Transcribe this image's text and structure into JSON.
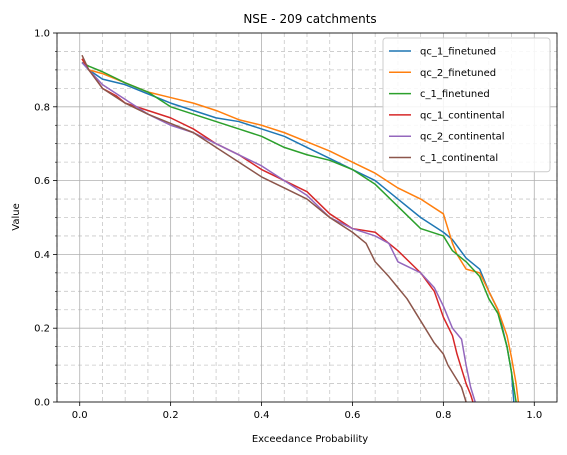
{
  "chart_data": {
    "type": "line",
    "title": "NSE - 209 catchments",
    "xlabel": "Exceedance Probability",
    "ylabel": "Value",
    "xlim": [
      -0.05,
      1.05
    ],
    "ylim": [
      0.0,
      1.0
    ],
    "xticks": [
      0.0,
      0.2,
      0.4,
      0.6,
      0.8,
      1.0
    ],
    "xtick_labels": [
      "0.0",
      "0.2",
      "0.4",
      "0.6",
      "0.8",
      "1.0"
    ],
    "yticks": [
      0.0,
      0.2,
      0.4,
      0.6,
      0.8,
      1.0
    ],
    "ytick_labels": [
      "0.0",
      "0.2",
      "0.4",
      "0.6",
      "0.8",
      "1.0"
    ],
    "grid": true,
    "minor_grid": true,
    "legend_position": "top-right",
    "series": [
      {
        "name": "qc_1_finetuned",
        "color": "#1f77b4",
        "x": [
          0.005,
          0.02,
          0.05,
          0.1,
          0.15,
          0.2,
          0.25,
          0.3,
          0.35,
          0.4,
          0.45,
          0.5,
          0.55,
          0.6,
          0.65,
          0.7,
          0.75,
          0.8,
          0.82,
          0.85,
          0.88,
          0.9,
          0.92,
          0.93,
          0.94,
          0.95,
          0.955
        ],
        "y": [
          0.92,
          0.9,
          0.875,
          0.86,
          0.835,
          0.81,
          0.79,
          0.77,
          0.76,
          0.74,
          0.72,
          0.69,
          0.66,
          0.63,
          0.6,
          0.55,
          0.5,
          0.46,
          0.44,
          0.39,
          0.36,
          0.3,
          0.25,
          0.2,
          0.15,
          0.08,
          0.0
        ]
      },
      {
        "name": "qc_2_finetuned",
        "color": "#ff7f0e",
        "x": [
          0.005,
          0.02,
          0.05,
          0.1,
          0.15,
          0.2,
          0.25,
          0.3,
          0.35,
          0.4,
          0.45,
          0.5,
          0.55,
          0.6,
          0.65,
          0.7,
          0.75,
          0.8,
          0.82,
          0.83,
          0.85,
          0.88,
          0.9,
          0.92,
          0.94,
          0.95,
          0.96,
          0.965
        ],
        "y": [
          0.93,
          0.9,
          0.89,
          0.865,
          0.84,
          0.825,
          0.81,
          0.79,
          0.765,
          0.75,
          0.73,
          0.705,
          0.68,
          0.65,
          0.62,
          0.58,
          0.55,
          0.51,
          0.43,
          0.4,
          0.36,
          0.35,
          0.3,
          0.25,
          0.18,
          0.12,
          0.05,
          0.0
        ]
      },
      {
        "name": "c_1_finetuned",
        "color": "#2ca02c",
        "x": [
          0.005,
          0.02,
          0.05,
          0.1,
          0.15,
          0.2,
          0.25,
          0.3,
          0.35,
          0.4,
          0.45,
          0.5,
          0.55,
          0.6,
          0.65,
          0.7,
          0.75,
          0.8,
          0.82,
          0.85,
          0.88,
          0.9,
          0.92,
          0.94,
          0.95,
          0.96
        ],
        "y": [
          0.92,
          0.91,
          0.895,
          0.865,
          0.84,
          0.8,
          0.78,
          0.76,
          0.74,
          0.72,
          0.69,
          0.67,
          0.655,
          0.63,
          0.59,
          0.53,
          0.47,
          0.45,
          0.41,
          0.38,
          0.34,
          0.28,
          0.24,
          0.15,
          0.08,
          0.0
        ]
      },
      {
        "name": "qc_1_continental",
        "color": "#d62728",
        "x": [
          0.005,
          0.02,
          0.03,
          0.05,
          0.08,
          0.1,
          0.15,
          0.2,
          0.25,
          0.3,
          0.35,
          0.4,
          0.45,
          0.5,
          0.55,
          0.6,
          0.65,
          0.7,
          0.75,
          0.78,
          0.8,
          0.82,
          0.83,
          0.84,
          0.85,
          0.86,
          0.865
        ],
        "y": [
          0.93,
          0.9,
          0.885,
          0.85,
          0.83,
          0.81,
          0.79,
          0.77,
          0.74,
          0.7,
          0.67,
          0.63,
          0.6,
          0.57,
          0.51,
          0.47,
          0.46,
          0.41,
          0.35,
          0.3,
          0.23,
          0.18,
          0.13,
          0.09,
          0.05,
          0.02,
          0.0
        ]
      },
      {
        "name": "qc_2_continental",
        "color": "#9467bd",
        "x": [
          0.005,
          0.02,
          0.05,
          0.1,
          0.15,
          0.2,
          0.25,
          0.3,
          0.35,
          0.4,
          0.45,
          0.5,
          0.55,
          0.6,
          0.65,
          0.68,
          0.7,
          0.75,
          0.78,
          0.8,
          0.82,
          0.84,
          0.85,
          0.86,
          0.87
        ],
        "y": [
          0.92,
          0.9,
          0.86,
          0.82,
          0.78,
          0.75,
          0.73,
          0.7,
          0.67,
          0.64,
          0.6,
          0.56,
          0.5,
          0.47,
          0.45,
          0.43,
          0.38,
          0.35,
          0.31,
          0.26,
          0.2,
          0.17,
          0.1,
          0.04,
          0.0
        ]
      },
      {
        "name": "c_1_continental",
        "color": "#8c564b",
        "x": [
          0.005,
          0.02,
          0.05,
          0.1,
          0.15,
          0.2,
          0.25,
          0.3,
          0.35,
          0.4,
          0.45,
          0.5,
          0.55,
          0.6,
          0.63,
          0.65,
          0.68,
          0.7,
          0.72,
          0.74,
          0.76,
          0.78,
          0.8,
          0.81,
          0.82,
          0.83,
          0.84,
          0.845,
          0.85
        ],
        "y": [
          0.94,
          0.9,
          0.85,
          0.81,
          0.78,
          0.755,
          0.73,
          0.69,
          0.65,
          0.61,
          0.58,
          0.55,
          0.5,
          0.46,
          0.43,
          0.38,
          0.34,
          0.31,
          0.28,
          0.24,
          0.2,
          0.16,
          0.13,
          0.1,
          0.08,
          0.06,
          0.04,
          0.02,
          0.0
        ]
      }
    ]
  }
}
